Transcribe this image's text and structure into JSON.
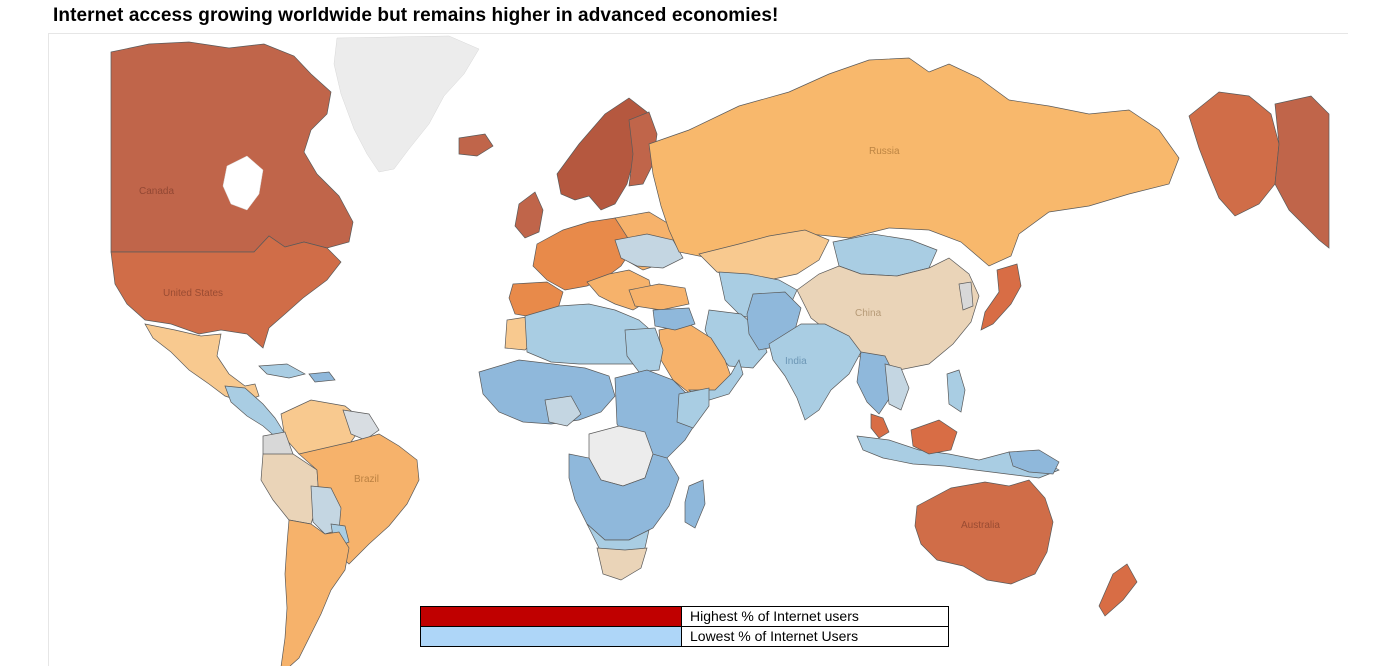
{
  "page": {
    "title": "Internet access growing worldwide but remains higher in advanced economies!"
  },
  "map": {
    "labels": {
      "canada": "Canada",
      "united_states": "United States",
      "brazil": "Brazil",
      "russia": "Russia",
      "china": "China",
      "india": "India",
      "australia": "Australia"
    },
    "colors": {
      "dark_red": "#c0654a",
      "red_orange": "#d86d45",
      "orange": "#e88a4a",
      "light_orange": "#f6b26b",
      "peach": "#f8c98f",
      "tan": "#ead4b8",
      "grey_blue": "#c4d6e2",
      "light_blue": "#a9cde3",
      "blue": "#8fb8db",
      "no_data": "#ececec"
    }
  },
  "legend": {
    "items": [
      {
        "label": "Highest % of Internet users",
        "color": "#c00000"
      },
      {
        "label": "Lowest % of Internet Users",
        "color": "#aed6f8"
      }
    ]
  }
}
